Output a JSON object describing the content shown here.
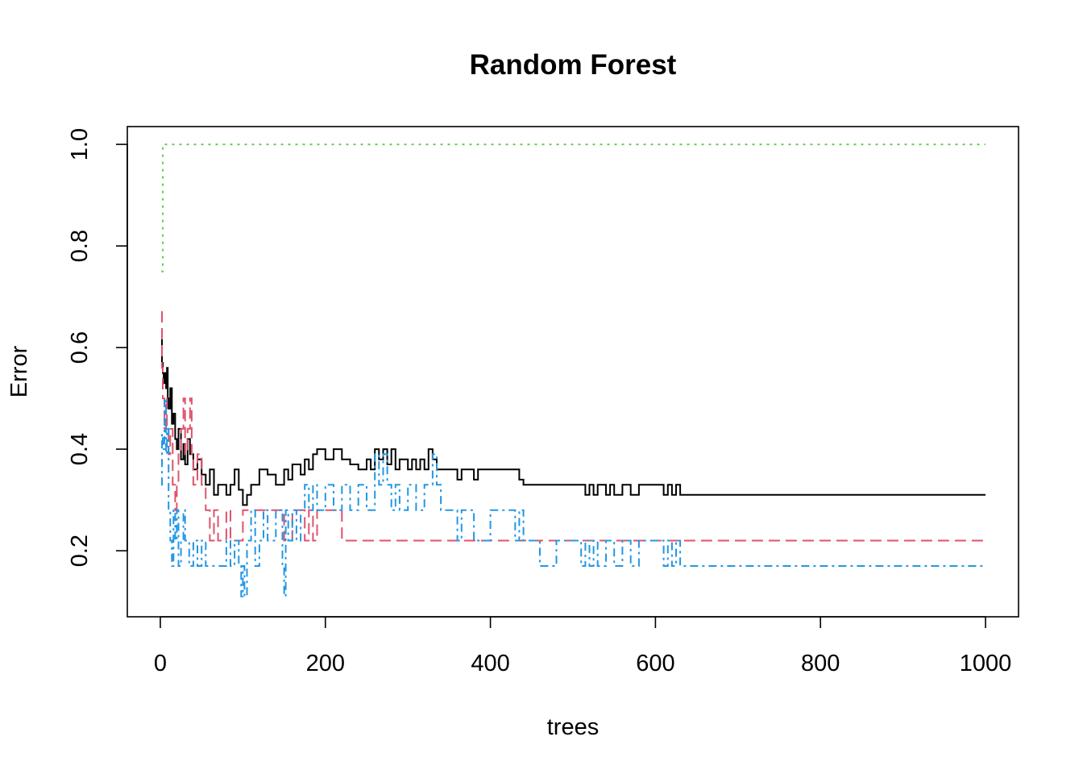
{
  "chart_data": {
    "type": "line",
    "title": "Random Forest",
    "xlabel": "trees",
    "ylabel": "Error",
    "xlim": [
      -40,
      1040
    ],
    "ylim": [
      0.07,
      1.035
    ],
    "x_ticks": [
      0,
      200,
      400,
      600,
      800,
      1000
    ],
    "x_tick_labels": [
      "0",
      "200",
      "400",
      "600",
      "800",
      "1000"
    ],
    "y_ticks": [
      0.2,
      0.4,
      0.6,
      0.8,
      1.0
    ],
    "y_tick_labels": [
      "0.2",
      "0.4",
      "0.6",
      "0.8",
      "1.0"
    ],
    "grid": false,
    "legend": "none",
    "series": [
      {
        "color": "#000000",
        "dash": "solid",
        "step": true,
        "x": [
          1,
          2,
          3,
          4,
          5,
          6,
          7,
          8,
          9,
          10,
          12,
          14,
          16,
          18,
          20,
          22,
          25,
          28,
          30,
          33,
          36,
          40,
          45,
          50,
          55,
          60,
          65,
          70,
          80,
          85,
          90,
          95,
          100,
          105,
          110,
          120,
          130,
          140,
          150,
          155,
          160,
          170,
          175,
          180,
          185,
          190,
          200,
          210,
          220,
          230,
          240,
          250,
          255,
          260,
          265,
          270,
          275,
          280,
          285,
          290,
          300,
          305,
          310,
          315,
          320,
          325,
          330,
          335,
          340,
          360,
          365,
          380,
          385,
          400,
          420,
          430,
          435,
          440,
          460,
          480,
          510,
          515,
          520,
          525,
          530,
          540,
          545,
          550,
          560,
          570,
          580,
          590,
          600,
          610,
          615,
          620,
          625,
          630,
          635,
          700,
          800,
          900,
          1000
        ],
        "y": [
          0.62,
          0.57,
          0.55,
          0.54,
          0.53,
          0.55,
          0.52,
          0.56,
          0.5,
          0.48,
          0.52,
          0.45,
          0.47,
          0.42,
          0.4,
          0.44,
          0.38,
          0.41,
          0.37,
          0.42,
          0.39,
          0.36,
          0.38,
          0.35,
          0.33,
          0.36,
          0.31,
          0.33,
          0.31,
          0.33,
          0.36,
          0.32,
          0.29,
          0.31,
          0.33,
          0.36,
          0.35,
          0.33,
          0.36,
          0.34,
          0.37,
          0.35,
          0.38,
          0.36,
          0.39,
          0.4,
          0.38,
          0.4,
          0.38,
          0.37,
          0.36,
          0.38,
          0.36,
          0.4,
          0.38,
          0.4,
          0.37,
          0.4,
          0.36,
          0.38,
          0.36,
          0.38,
          0.36,
          0.38,
          0.36,
          0.4,
          0.38,
          0.36,
          0.36,
          0.34,
          0.36,
          0.34,
          0.36,
          0.36,
          0.36,
          0.36,
          0.34,
          0.33,
          0.33,
          0.33,
          0.33,
          0.31,
          0.33,
          0.31,
          0.33,
          0.31,
          0.33,
          0.31,
          0.33,
          0.31,
          0.33,
          0.33,
          0.33,
          0.31,
          0.33,
          0.31,
          0.33,
          0.31,
          0.31,
          0.31,
          0.31,
          0.31,
          0.31
        ]
      },
      {
        "color": "#df536b",
        "dash": "14,7",
        "step": true,
        "x": [
          1,
          2,
          3,
          5,
          7,
          8,
          10,
          12,
          15,
          18,
          20,
          22,
          25,
          28,
          30,
          33,
          36,
          38,
          40,
          45,
          50,
          55,
          60,
          65,
          70,
          80,
          85,
          90,
          100,
          105,
          110,
          120,
          130,
          140,
          150,
          160,
          170,
          175,
          180,
          185,
          190,
          200,
          220,
          300,
          400,
          500,
          600,
          700,
          800,
          900,
          1000
        ],
        "y": [
          0.67,
          0.56,
          0.5,
          0.44,
          0.5,
          0.44,
          0.39,
          0.44,
          0.33,
          0.28,
          0.33,
          0.39,
          0.44,
          0.5,
          0.39,
          0.44,
          0.5,
          0.39,
          0.33,
          0.39,
          0.33,
          0.28,
          0.22,
          0.28,
          0.22,
          0.28,
          0.22,
          0.22,
          0.28,
          0.28,
          0.28,
          0.28,
          0.28,
          0.28,
          0.22,
          0.28,
          0.28,
          0.22,
          0.28,
          0.22,
          0.28,
          0.28,
          0.22,
          0.22,
          0.22,
          0.22,
          0.22,
          0.22,
          0.22,
          0.22,
          0.22
        ]
      },
      {
        "color": "#61d04f",
        "dash": "3,6",
        "step": true,
        "x": [
          1,
          2,
          3,
          4,
          6,
          10,
          100,
          200,
          400,
          600,
          800,
          1000
        ],
        "y": [
          0.75,
          0.75,
          1,
          1,
          1,
          1,
          1,
          1,
          1,
          1,
          1,
          1
        ]
      },
      {
        "color": "#2297e6",
        "dash": "10,5,3,5",
        "step": true,
        "x": [
          1,
          2,
          3,
          5,
          7,
          8,
          10,
          12,
          14,
          16,
          18,
          20,
          22,
          25,
          28,
          30,
          35,
          40,
          45,
          50,
          55,
          60,
          65,
          70,
          80,
          85,
          90,
          95,
          98,
          100,
          102,
          105,
          110,
          115,
          120,
          125,
          130,
          140,
          148,
          150,
          152,
          155,
          160,
          165,
          170,
          175,
          180,
          185,
          190,
          200,
          210,
          220,
          230,
          240,
          250,
          260,
          265,
          270,
          275,
          280,
          285,
          290,
          300,
          310,
          320,
          330,
          335,
          340,
          360,
          365,
          380,
          400,
          420,
          430,
          435,
          440,
          455,
          460,
          480,
          510,
          515,
          520,
          525,
          530,
          540,
          550,
          560,
          570,
          580,
          590,
          600,
          610,
          615,
          620,
          625,
          630,
          635,
          700,
          800,
          900,
          1000
        ],
        "y": [
          0.33,
          0.43,
          0.4,
          0.5,
          0.39,
          0.44,
          0.28,
          0.22,
          0.17,
          0.28,
          0.22,
          0.28,
          0.17,
          0.22,
          0.28,
          0.22,
          0.17,
          0.22,
          0.17,
          0.22,
          0.17,
          0.17,
          0.17,
          0.17,
          0.22,
          0.17,
          0.22,
          0.17,
          0.11,
          0.17,
          0.11,
          0.22,
          0.28,
          0.17,
          0.22,
          0.28,
          0.22,
          0.28,
          0.17,
          0.11,
          0.28,
          0.22,
          0.28,
          0.22,
          0.28,
          0.33,
          0.28,
          0.33,
          0.28,
          0.33,
          0.28,
          0.33,
          0.28,
          0.33,
          0.28,
          0.39,
          0.33,
          0.39,
          0.33,
          0.28,
          0.33,
          0.28,
          0.33,
          0.28,
          0.33,
          0.39,
          0.33,
          0.28,
          0.22,
          0.28,
          0.22,
          0.28,
          0.28,
          0.22,
          0.28,
          0.22,
          0.22,
          0.17,
          0.22,
          0.17,
          0.22,
          0.17,
          0.22,
          0.17,
          0.22,
          0.17,
          0.22,
          0.17,
          0.22,
          0.22,
          0.22,
          0.17,
          0.22,
          0.17,
          0.22,
          0.17,
          0.17,
          0.17,
          0.17,
          0.17,
          0.17
        ]
      }
    ]
  }
}
